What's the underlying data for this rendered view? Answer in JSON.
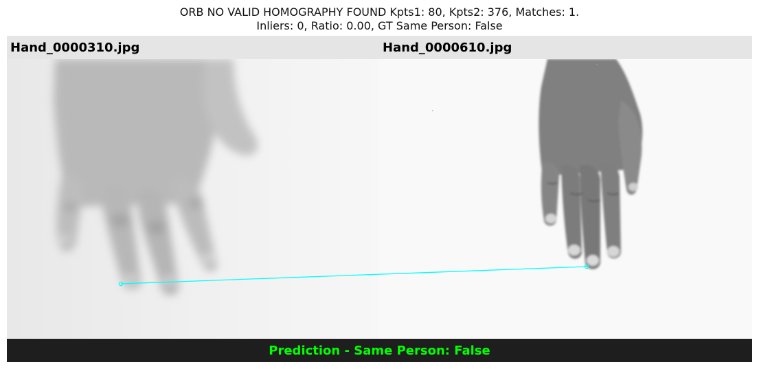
{
  "title": {
    "line1": "ORB NO VALID HOMOGRAPHY FOUND Kpts1: 80, Kpts2: 376, Matches: 1.",
    "line2": "Inliers: 0, Ratio: 0.00, GT Same Person: False"
  },
  "images": {
    "left_filename": "Hand_0000310.jpg",
    "right_filename": "Hand_0000610.jpg"
  },
  "match_line_color": "#00ffff",
  "prediction": {
    "text": "Prediction - Same Person: False",
    "color": "#00ff00"
  }
}
